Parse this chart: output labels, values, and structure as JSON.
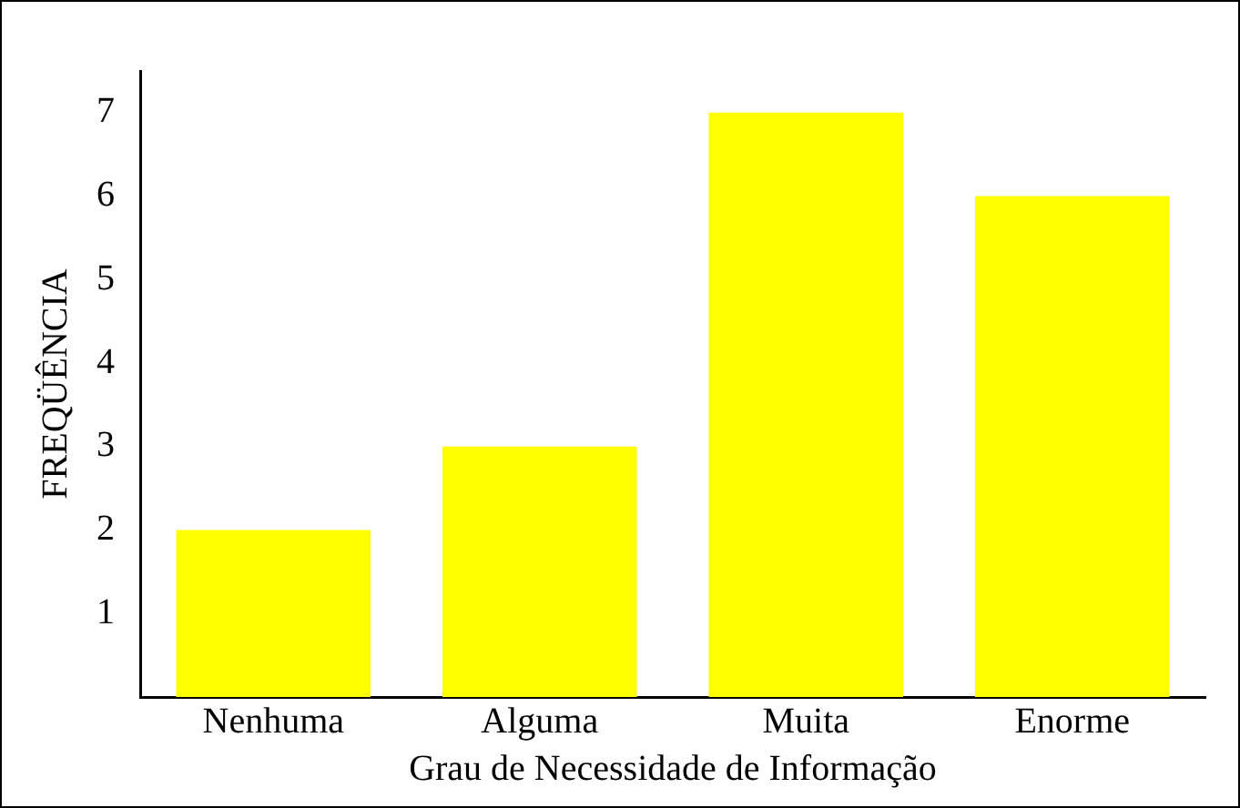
{
  "chart_data": {
    "type": "bar",
    "xlabel": "Grau de Necessidade de Informação",
    "ylabel": "FREQÜÊNCIA",
    "categories": [
      "Nenhuma",
      "Alguma",
      "Muita",
      "Enorme"
    ],
    "values": [
      2,
      3,
      7,
      6
    ],
    "color": "#ffff00",
    "ylim": [
      0,
      7.5
    ],
    "yticks": [
      1,
      2,
      3,
      4,
      5,
      6,
      7
    ],
    "grid": false,
    "legend": false
  }
}
